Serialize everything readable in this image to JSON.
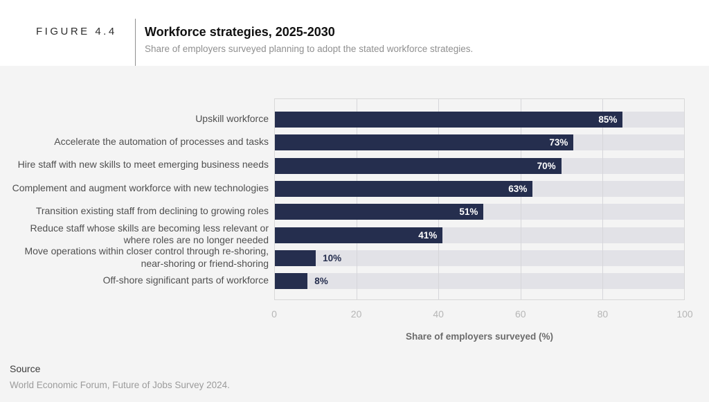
{
  "figure": {
    "label": "FIGURE 4.4",
    "title": "Workforce strategies, 2025-2030",
    "subtitle": "Share of employers surveyed planning to adopt the stated workforce strategies."
  },
  "chart_data": {
    "type": "bar",
    "orientation": "horizontal",
    "title": "Workforce strategies, 2025-2030",
    "categories": [
      "Upskill workforce",
      "Accelerate the automation of processes and tasks",
      "Hire staff with new skills to meet emerging business needs",
      "Complement and augment workforce with new technologies",
      "Transition existing staff from declining to growing roles",
      "Reduce staff whose skills are becoming less relevant or where roles are no longer needed",
      "Move operations within closer control through re-shoring, near-shoring or friend-shoring",
      "Off-shore significant parts of workforce"
    ],
    "label_lines": [
      [
        "Upskill workforce"
      ],
      [
        "Accelerate the automation of processes and tasks"
      ],
      [
        "Hire staff with new skills to meet emerging business needs"
      ],
      [
        "Complement and augment workforce with new technologies"
      ],
      [
        "Transition existing staff from declining to growing roles"
      ],
      [
        "Reduce staff whose skills are becoming less relevant or",
        "where roles are no longer needed"
      ],
      [
        "Move operations within closer control through re-shoring,",
        "near-shoring or friend-shoring"
      ],
      [
        "Off-shore significant parts of workforce"
      ]
    ],
    "values": [
      85,
      73,
      70,
      63,
      51,
      41,
      10,
      8
    ],
    "value_labels": [
      "85%",
      "73%",
      "70%",
      "63%",
      "51%",
      "41%",
      "10%",
      "8%"
    ],
    "xlabel": "Share of employers surveyed (%)",
    "xlim": [
      0,
      100
    ],
    "xticks": [
      "0",
      "20",
      "40",
      "60",
      "80",
      "100"
    ],
    "grid": true,
    "inside_label_threshold": 20,
    "colors": {
      "bar": "#252e4e",
      "track": "#e2e2e7",
      "inside_label": "#ffffff",
      "outside_label": "#252e4e",
      "gridline": "#d6d6da"
    }
  },
  "source": {
    "heading": "Source",
    "text": "World Economic Forum, Future of Jobs Survey 2024."
  }
}
